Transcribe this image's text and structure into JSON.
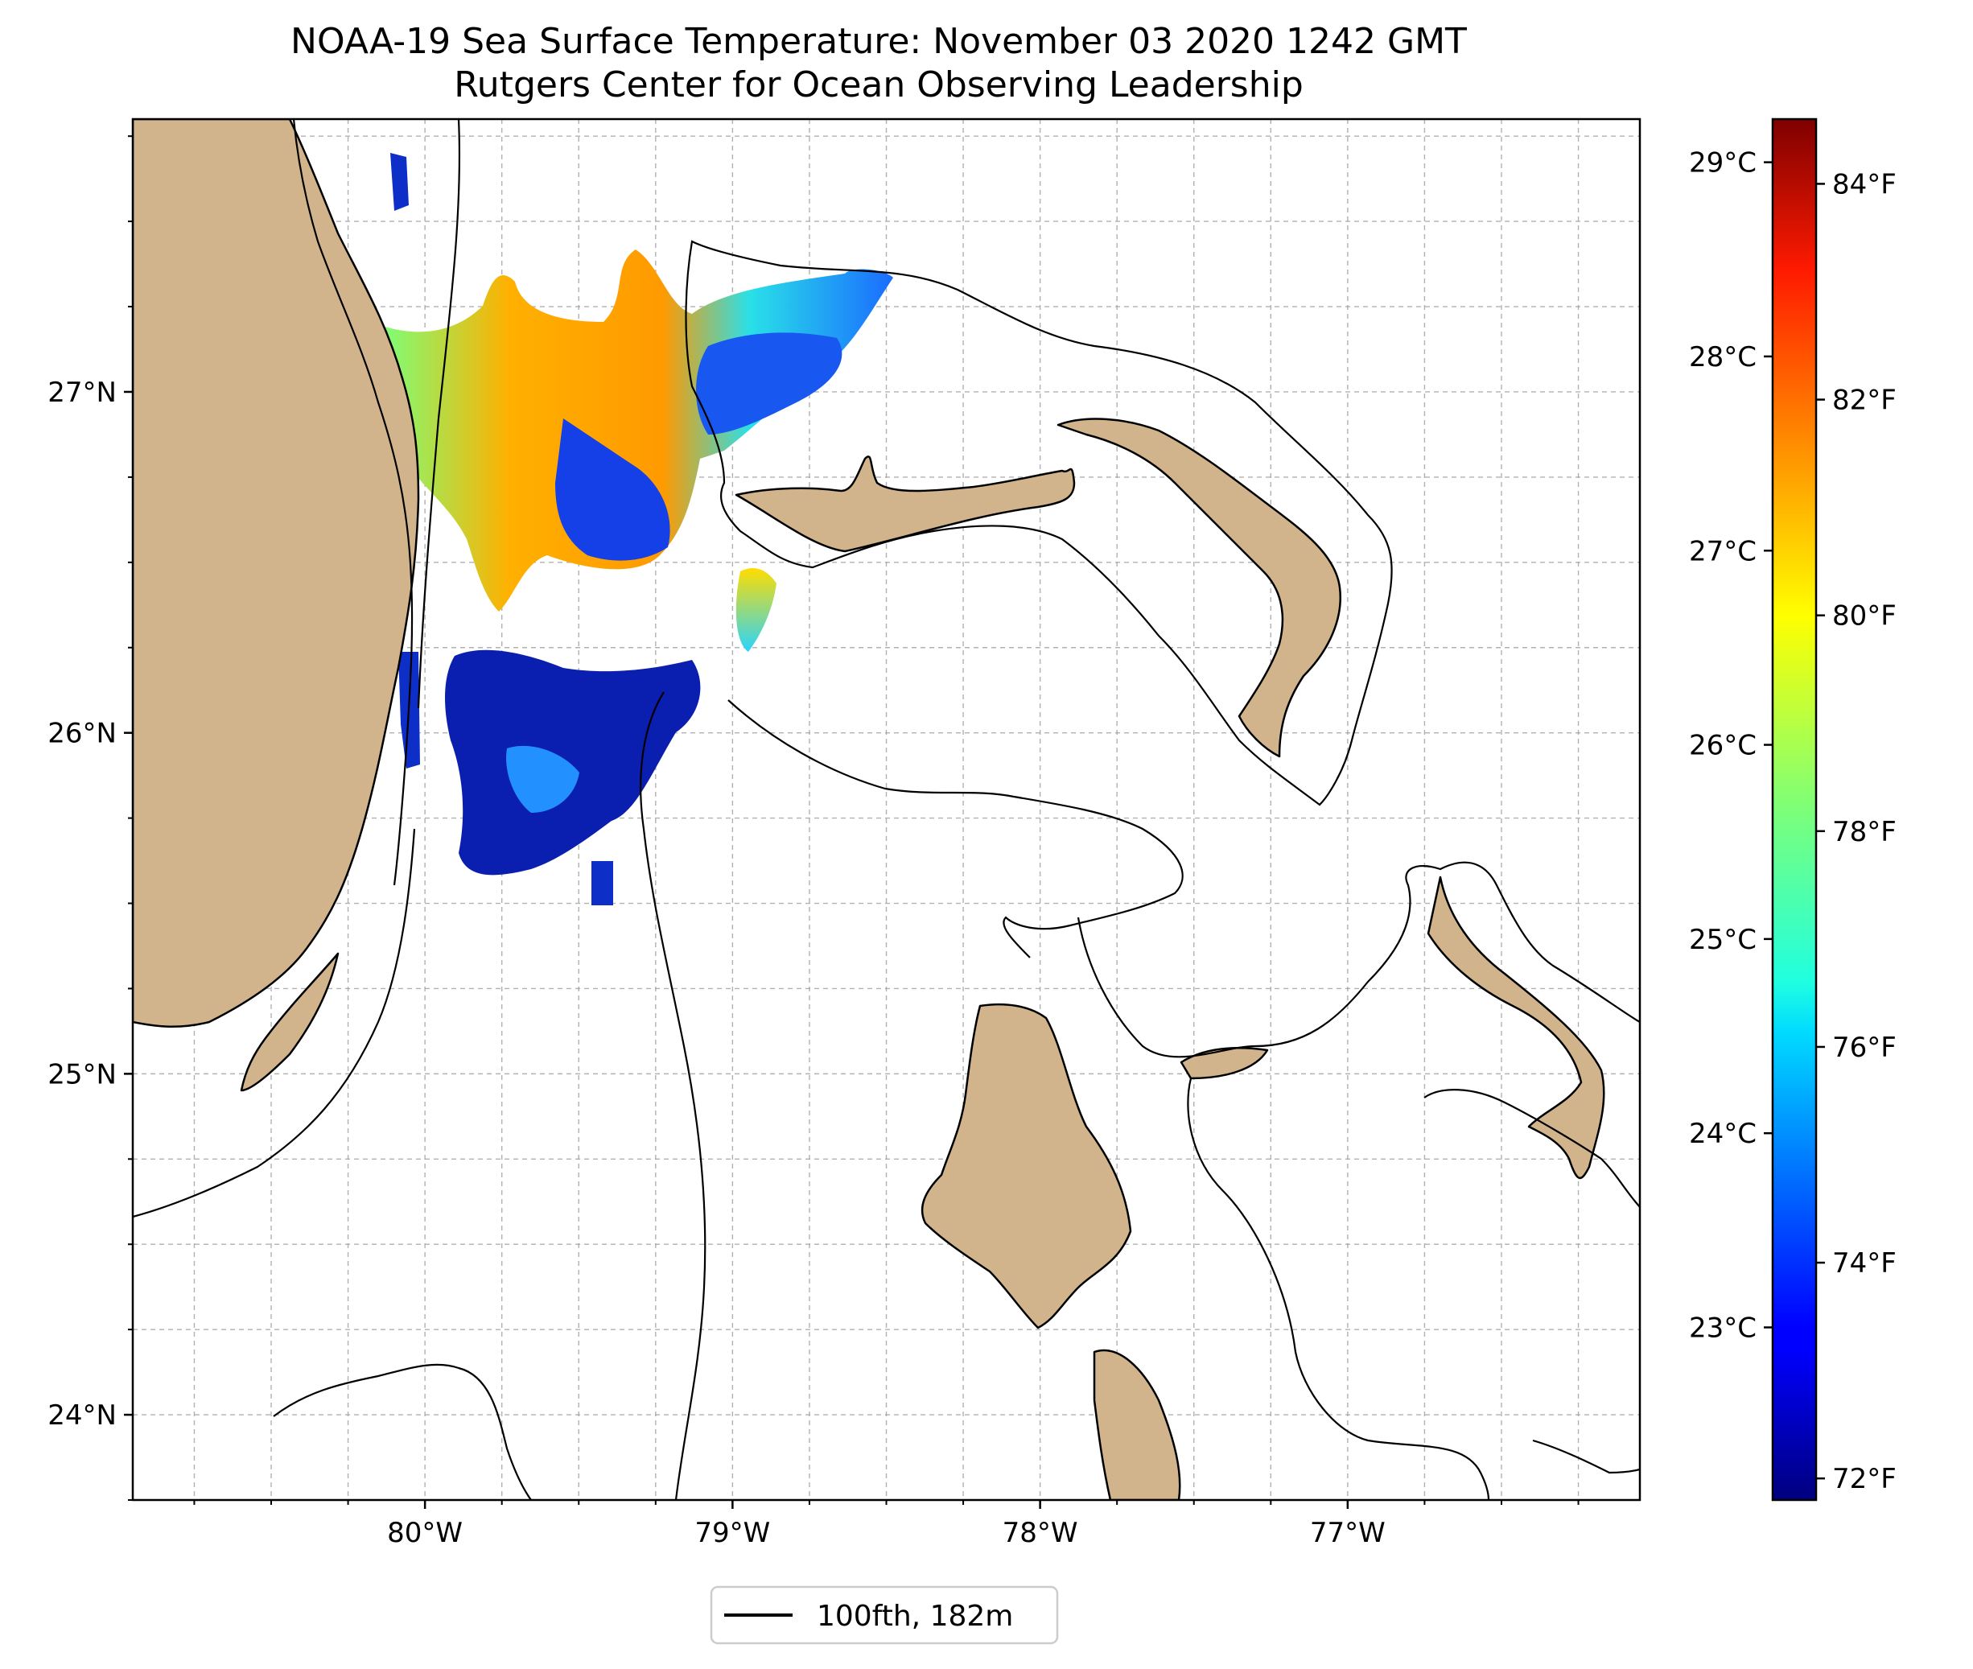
{
  "title": {
    "line1": "NOAA-19 Sea Surface Temperature: November 03 2020 1242 GMT",
    "line2": "Rutgers Center for Ocean Observing Leadership"
  },
  "map": {
    "lat_range": [
      23.75,
      27.8
    ],
    "lon_range": [
      -80.95,
      -76.05
    ],
    "lat_ticks": [
      {
        "value": 27,
        "label": "27°N"
      },
      {
        "value": 26,
        "label": "26°N"
      },
      {
        "value": 25,
        "label": "25°N"
      },
      {
        "value": 24,
        "label": "24°N"
      }
    ],
    "lon_ticks": [
      {
        "value": -80,
        "label": "80°W"
      },
      {
        "value": -79,
        "label": "79°W"
      },
      {
        "value": -78,
        "label": "78°W"
      },
      {
        "value": -77,
        "label": "77°W"
      }
    ],
    "gridlines": "dashed, every 0.25°",
    "land_color": "#d2b48c",
    "contour_color": "#000000"
  },
  "colorbar": {
    "colormap": "jet",
    "range_f": [
      71.8,
      84.6
    ],
    "celsius_ticks": [
      {
        "value": 29,
        "label": "29°C"
      },
      {
        "value": 28,
        "label": "28°C"
      },
      {
        "value": 27,
        "label": "27°C"
      },
      {
        "value": 26,
        "label": "26°C"
      },
      {
        "value": 25,
        "label": "25°C"
      },
      {
        "value": 24,
        "label": "24°C"
      },
      {
        "value": 23,
        "label": "23°C"
      }
    ],
    "fahrenheit_ticks": [
      {
        "value": 84,
        "label": "84°F"
      },
      {
        "value": 82,
        "label": "82°F"
      },
      {
        "value": 80,
        "label": "80°F"
      },
      {
        "value": 78,
        "label": "78°F"
      },
      {
        "value": 76,
        "label": "76°F"
      },
      {
        "value": 74,
        "label": "74°F"
      },
      {
        "value": 72,
        "label": "72°F"
      }
    ]
  },
  "legend": {
    "label": "100fth, 182m",
    "line_color": "#000000"
  }
}
